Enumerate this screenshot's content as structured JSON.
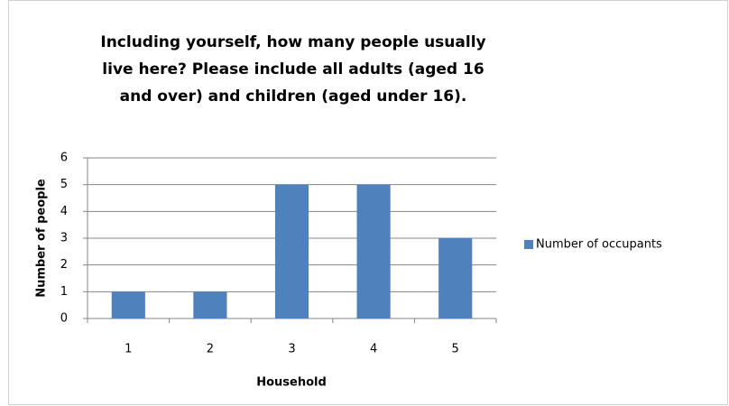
{
  "chart_data": {
    "type": "bar",
    "title": "Including yourself, how many people usually live here?  Please include all adults (aged 16 and over) and children (aged under 16).",
    "x_label": "Household",
    "y_label": "Number of people",
    "categories": [
      "1",
      "2",
      "3",
      "4",
      "5"
    ],
    "series": [
      {
        "name": "Number of occupants",
        "color": "#4f81bd",
        "values": [
          1,
          1,
          5,
          5,
          3
        ]
      }
    ],
    "ylim": [
      0,
      6
    ],
    "yticks": [
      0,
      1,
      2,
      3,
      4,
      5,
      6
    ],
    "grid": true,
    "legend": "right"
  }
}
